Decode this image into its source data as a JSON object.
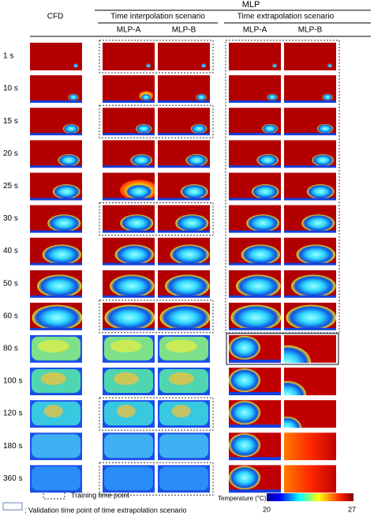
{
  "header": {
    "group_title": "MLP",
    "cfd": "CFD",
    "scenarios": [
      "Time interpolation scenario",
      "Time extrapolation scenario"
    ],
    "models": [
      "MLP-A",
      "MLP-B",
      "MLP-A",
      "MLP-B"
    ]
  },
  "rows": [
    "1 s",
    "10 s",
    "15 s",
    "20 s",
    "25 s",
    "30 s",
    "40 s",
    "50 s",
    "60 s",
    "80 s",
    "100 s",
    "120 s",
    "180 s",
    "360 s"
  ],
  "legend": {
    "training": "Training time point",
    "validation": "; Validation time point of time extrapolation scenario"
  },
  "colorbar": {
    "title": "Temperature (°C)",
    "min": "20",
    "max": "27"
  }
}
